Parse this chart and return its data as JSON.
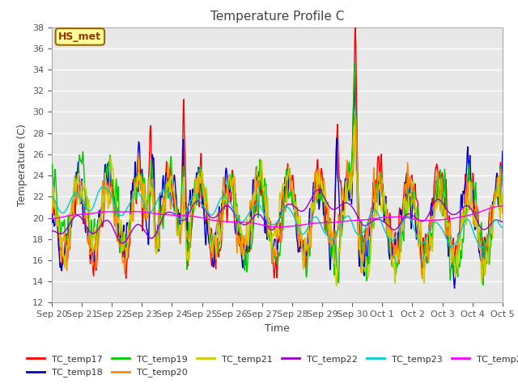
{
  "title": "Temperature Profile C",
  "xlabel": "Time",
  "ylabel": "Temperature (C)",
  "ylim": [
    12,
    38
  ],
  "yticks": [
    12,
    14,
    16,
    18,
    20,
    22,
    24,
    26,
    28,
    30,
    32,
    34,
    36,
    38
  ],
  "background_color": "#ffffff",
  "plot_bg_color": "#e8e8e8",
  "annotation_text": "HS_met",
  "annotation_bg": "#ffff99",
  "annotation_border": "#996600",
  "annotation_text_color": "#993300",
  "series_colors": {
    "TC_temp17": "#ff0000",
    "TC_temp18": "#0000cc",
    "TC_temp19": "#00cc00",
    "TC_temp20": "#ff8800",
    "TC_temp21": "#cccc00",
    "TC_temp22": "#9900cc",
    "TC_temp23": "#00cccc",
    "TC_temp24": "#ff00ff"
  },
  "x_tick_labels": [
    "Sep 20",
    "Sep 21",
    "Sep 22",
    "Sep 23",
    "Sep 24",
    "Sep 25",
    "Sep 26",
    "Sep 27",
    "Sep 28",
    "Sep 29",
    "Sep 30",
    "Oct 1",
    "Oct 2",
    "Oct 3",
    "Oct 4",
    "Oct 5"
  ],
  "n_points": 960
}
